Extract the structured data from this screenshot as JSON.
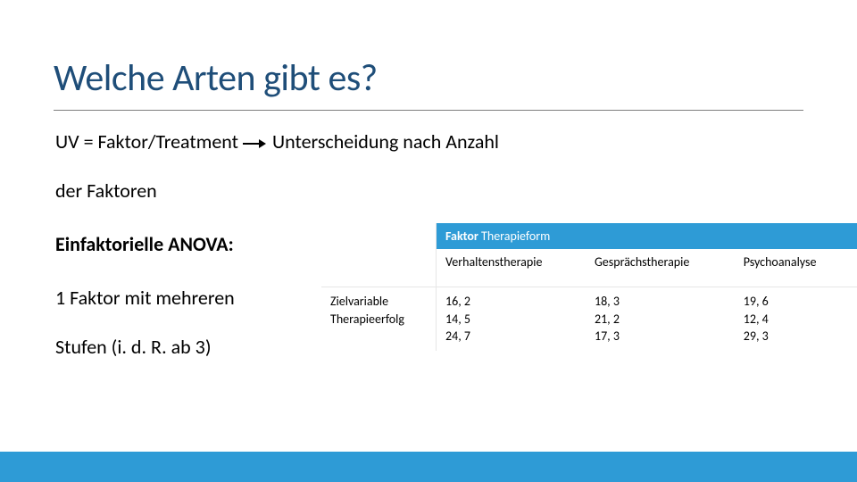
{
  "title": "Welche Arten gibt es?",
  "body": {
    "line1_a": "UV = Faktor/Treatment",
    "line1_b": "Unterscheidung nach Anzahl",
    "line2": "der Faktoren",
    "heading2": "Einfaktorielle ANOVA:",
    "line3": "1 Faktor mit mehreren",
    "line4": "Stufen (i. d. R. ab 3)"
  },
  "table": {
    "factor_label_bold": "Faktor",
    "factor_label_rest": "Therapieform",
    "sub_headers": [
      "Verhaltenstherapie",
      "Gesprächstherapie",
      "Psychoanalyse"
    ],
    "row_label_a": "Zielvariable",
    "row_label_b": "Therapieerfolg",
    "cells": {
      "c1a": "16, 2",
      "c1b": "14, 5",
      "c1c": "24, 7",
      "c2a": "18, 3",
      "c2b": "21, 2",
      "c2c": "17, 3",
      "c3a": "19, 6",
      "c3b": "12, 4",
      "c3c": "29, 3"
    }
  },
  "colors": {
    "title": "#1f4e79",
    "accent": "#2e9bd6",
    "underline": "#7f7f7f",
    "background": "#ffffff",
    "text": "#000000"
  }
}
